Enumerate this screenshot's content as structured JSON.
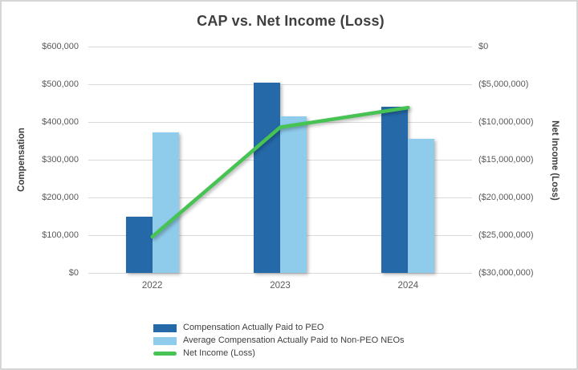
{
  "title": "CAP vs. Net Income (Loss)",
  "chart_data": {
    "type": "bar+line combo",
    "grid": "horizontal",
    "categories": [
      "2022",
      "2023",
      "2024"
    ],
    "series": [
      {
        "name": "Compensation Actually Paid to PEO",
        "type": "bar",
        "axis": "left",
        "color": "#2569A8",
        "values": [
          150000,
          505000,
          440000
        ]
      },
      {
        "name": "Average Compensation Actually Paid to Non-PEO NEOs",
        "type": "bar",
        "axis": "left",
        "color": "#8FCBEB",
        "values": [
          372000,
          415000,
          355000
        ]
      },
      {
        "name": "Net Income (Loss)",
        "type": "line",
        "axis": "right",
        "color": "#46C353",
        "values": [
          -25200000,
          -10700000,
          -8100000
        ]
      }
    ],
    "left_axis": {
      "title": "Compensation",
      "min": 0,
      "max": 600000,
      "ticks": [
        "$600,000",
        "$500,000",
        "$400,000",
        "$300,000",
        "$200,000",
        "$100,000",
        "$0"
      ]
    },
    "right_axis": {
      "title": "Net Income (Loss)",
      "min": -30000000,
      "max": 0,
      "ticks": [
        "$0",
        "($5,000,000)",
        "($10,000,000)",
        "($15,000,000)",
        "($20,000,000)",
        "($25,000,000)",
        "($30,000,000)"
      ]
    },
    "legend": {
      "position": "bottom",
      "entries": [
        "Compensation Actually Paid to PEO",
        "Average Compensation Actually Paid to Non-PEO NEOs",
        "Net Income (Loss)"
      ]
    }
  },
  "colors": {
    "gridline": "#D9D9D9",
    "tick_text": "#595959",
    "title_text": "#3F3F3F",
    "bar_peo": "#2569A8",
    "bar_non_peo": "#8FCBEB",
    "line_net_income": "#46C353"
  }
}
